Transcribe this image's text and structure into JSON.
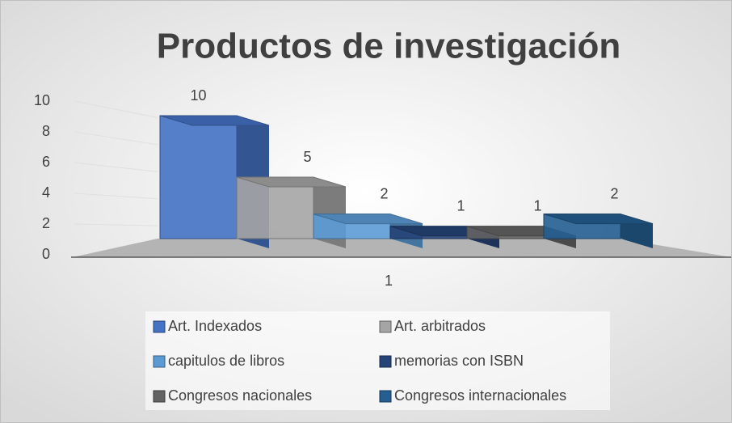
{
  "chart_data": {
    "type": "bar",
    "title": "Productos de investigación",
    "categories": [
      "1"
    ],
    "series": [
      {
        "name": "Art. Indexados",
        "color": "#4472c4",
        "values": [
          10
        ]
      },
      {
        "name": "Art. arbitrados",
        "color": "#a5a5a5",
        "values": [
          5
        ]
      },
      {
        "name": "capitulos de libros",
        "color": "#5b9bd5",
        "values": [
          2
        ]
      },
      {
        "name": "memorias con ISBN",
        "color": "#264478",
        "values": [
          1
        ]
      },
      {
        "name": "Congresos nacionales",
        "color": "#636363",
        "values": [
          1
        ]
      },
      {
        "name": "Congresos internacionales",
        "color": "#255e91",
        "values": [
          2
        ]
      }
    ],
    "ylim": [
      0,
      10
    ],
    "yticks": [
      0,
      2,
      4,
      6,
      8,
      10
    ],
    "grid": true,
    "legend": "bottom"
  }
}
